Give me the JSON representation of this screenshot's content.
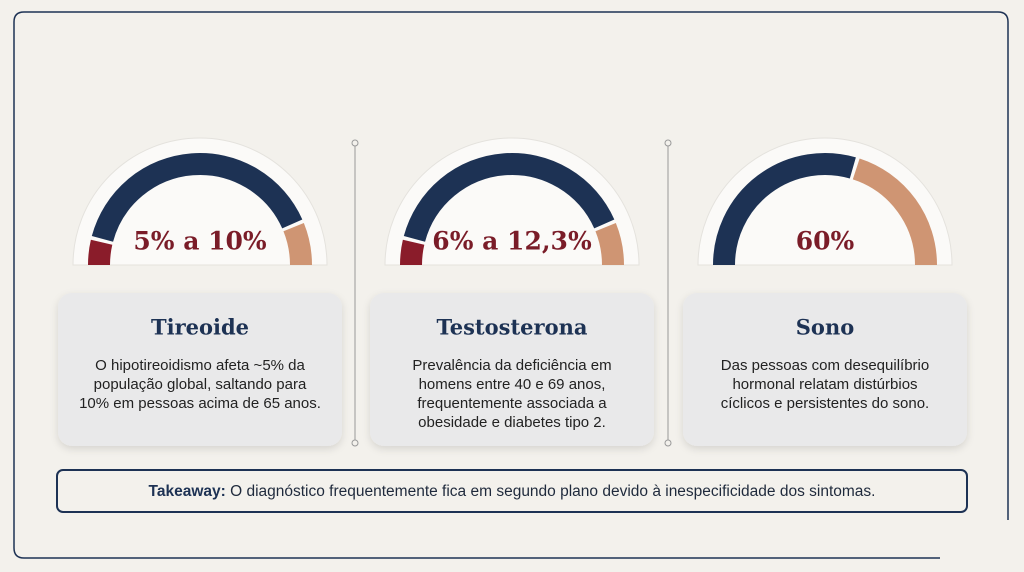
{
  "cards": [
    {
      "stat": "5% a 10%",
      "title": "Tireoide",
      "lines": [
        "O hipotireoidismo afeta ~5% da",
        "população global, saltando para",
        "10% em pessoas acima de 65 anos."
      ]
    },
    {
      "stat": "6% a 12,3%",
      "title": "Testosterona",
      "lines": [
        "Prevalência da deficiência em",
        "homens entre 40 e 69 anos,",
        "frequentemente associada a",
        "obesidade e diabetes tipo 2."
      ]
    },
    {
      "stat": "60%",
      "title": "Sono",
      "lines": [
        "Das pessoas com desequilíbrio",
        "hormonal relatam distúrbios",
        "cíclicos e persistentes do sono."
      ]
    }
  ],
  "takeaway": {
    "label": "Takeaway:",
    "text": "O diagnóstico frequentemente fica em segundo plano devido à inespecificidade dos sintomas."
  }
}
